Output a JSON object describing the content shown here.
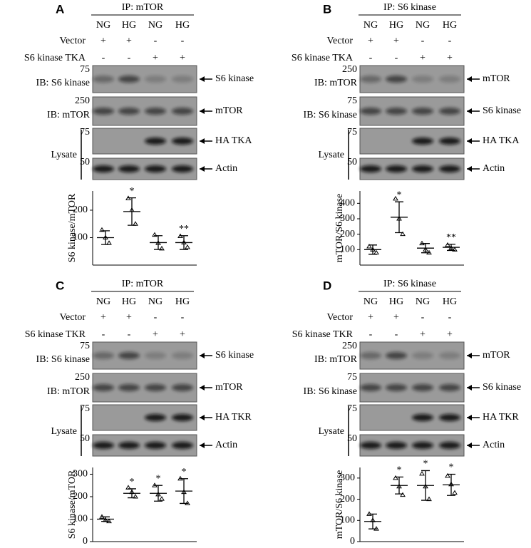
{
  "panels": [
    {
      "label": "A",
      "ip": "IP: mTOR",
      "lanes": [
        "NG",
        "HG",
        "NG",
        "HG"
      ],
      "rows": [
        {
          "name": "Vector",
          "signs": [
            "+",
            "+",
            "-",
            "-"
          ]
        },
        {
          "name": "S6 kinase TKA",
          "signs": [
            "-",
            "-",
            "+",
            "+"
          ]
        }
      ],
      "blots": [
        {
          "left": "IB: S6 kinase",
          "marker": "75",
          "right": "S6 kinase"
        },
        {
          "left": "IB: mTOR",
          "marker": "250",
          "right": "mTOR"
        },
        {
          "marker": "75",
          "right": "HA TKA"
        },
        {
          "marker": "50",
          "right": "Actin"
        }
      ],
      "lysate": "Lysate"
    },
    {
      "label": "B",
      "ip": "IP: S6 kinase",
      "lanes": [
        "NG",
        "HG",
        "NG",
        "HG"
      ],
      "rows": [
        {
          "name": "Vector",
          "signs": [
            "+",
            "+",
            "-",
            "-"
          ]
        },
        {
          "name": "S6 kinase TKA",
          "signs": [
            "-",
            "-",
            "+",
            "+"
          ]
        }
      ],
      "blots": [
        {
          "left": "IB: mTOR",
          "marker": "250",
          "right": "mTOR"
        },
        {
          "left": "IB: S6 kinase",
          "marker": "75",
          "right": "S6 kinase"
        },
        {
          "marker": "75",
          "right": "HA TKA"
        },
        {
          "marker": "50",
          "right": "Actin"
        }
      ],
      "lysate": "Lysate"
    },
    {
      "label": "C",
      "ip": "IP: mTOR",
      "lanes": [
        "NG",
        "HG",
        "NG",
        "HG"
      ],
      "rows": [
        {
          "name": "Vector",
          "signs": [
            "+",
            "+",
            "-",
            "-"
          ]
        },
        {
          "name": "S6 kinase TKR",
          "signs": [
            "-",
            "-",
            "+",
            "+"
          ]
        }
      ],
      "blots": [
        {
          "left": "IB: S6 kinase",
          "marker": "75",
          "right": "S6 kinase"
        },
        {
          "left": "IB: mTOR",
          "marker": "250",
          "right": "mTOR"
        },
        {
          "marker": "75",
          "right": "HA TKR"
        },
        {
          "marker": "50",
          "right": "Actin"
        }
      ],
      "lysate": "Lysate"
    },
    {
      "label": "D",
      "ip": "IP: S6 kinase",
      "lanes": [
        "NG",
        "HG",
        "NG",
        "HG"
      ],
      "rows": [
        {
          "name": "Vector",
          "signs": [
            "+",
            "+",
            "-",
            "-"
          ]
        },
        {
          "name": "S6 kinase TKR",
          "signs": [
            "-",
            "-",
            "+",
            "+"
          ]
        }
      ],
      "blots": [
        {
          "left": "IB: mTOR",
          "marker": "250",
          "right": "mTOR"
        },
        {
          "left": "IB: S6 kinase",
          "marker": "75",
          "right": "S6 kinase"
        },
        {
          "marker": "75",
          "right": "HA TKR"
        },
        {
          "marker": "50",
          "right": "Actin"
        }
      ],
      "lysate": "Lysate"
    }
  ],
  "chart_data": [
    {
      "type": "dotplot",
      "ylabel": "S6 kinase/mTOR",
      "ylim": [
        0,
        270
      ],
      "yticks": [
        100,
        200
      ],
      "points": [
        [
          128,
          100,
          80
        ],
        [
          243,
          200,
          150
        ],
        [
          110,
          80,
          60
        ],
        [
          105,
          82,
          65
        ]
      ],
      "means": [
        100,
        195,
        82,
        82
      ],
      "sd": [
        25,
        50,
        25,
        25
      ],
      "annotations": [
        null,
        "*",
        null,
        "**"
      ]
    },
    {
      "type": "dotplot",
      "ylabel": "mTOR/S6 kinase",
      "ylim": [
        0,
        480
      ],
      "yticks": [
        100,
        200,
        300,
        400
      ],
      "points": [
        [
          120,
          100,
          80
        ],
        [
          430,
          300,
          200
        ],
        [
          140,
          100,
          80
        ],
        [
          130,
          110,
          100
        ]
      ],
      "means": [
        100,
        310,
        110,
        115
      ],
      "sd": [
        30,
        100,
        30,
        20
      ],
      "annotations": [
        null,
        "*",
        null,
        "**"
      ]
    },
    {
      "type": "dotplot",
      "ylabel": "S6 kinase/mTOR",
      "ylim": [
        0,
        330
      ],
      "yticks": [
        0,
        100,
        200,
        300
      ],
      "points": [
        [
          110,
          95,
          90
        ],
        [
          240,
          220,
          200
        ],
        [
          250,
          210,
          190
        ],
        [
          280,
          220,
          170
        ]
      ],
      "means": [
        100,
        215,
        215,
        225
      ],
      "sd": [
        10,
        20,
        35,
        55
      ],
      "annotations": [
        null,
        "*",
        "*",
        "*"
      ]
    },
    {
      "type": "dotplot",
      "ylabel": "mTOR/S6 kinase",
      "ylim": [
        0,
        350
      ],
      "yticks": [
        0,
        100,
        200,
        300
      ],
      "points": [
        [
          130,
          100,
          60
        ],
        [
          300,
          260,
          220
        ],
        [
          320,
          260,
          200
        ],
        [
          310,
          270,
          230
        ]
      ],
      "means": [
        95,
        265,
        265,
        268
      ],
      "sd": [
        35,
        40,
        70,
        50
      ],
      "annotations": [
        null,
        "*",
        "*",
        "*"
      ]
    }
  ]
}
